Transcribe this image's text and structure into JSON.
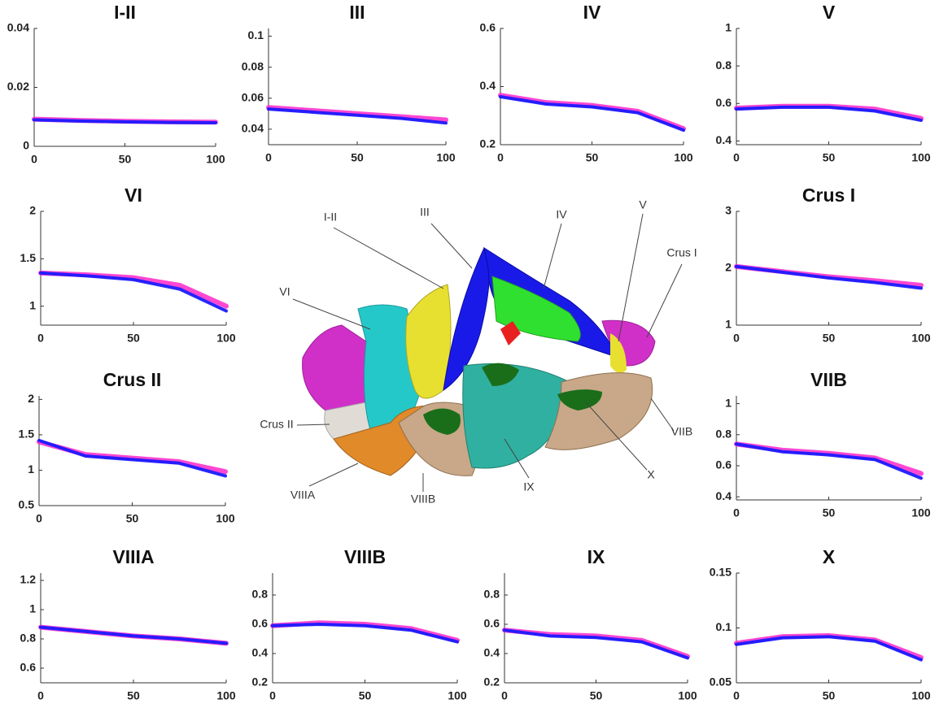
{
  "chart_data": [
    {
      "type": "line",
      "title": "I-II",
      "x": [
        0,
        25,
        50,
        75,
        100
      ],
      "xlim": [
        0,
        100
      ],
      "xticks": [
        0,
        50,
        100
      ],
      "ylim": [
        0,
        0.04
      ],
      "yticks": [
        0,
        0.02,
        0.04
      ],
      "series": [
        {
          "color": "#ff33cc",
          "values": [
            0.0092,
            0.0088,
            0.0085,
            0.0083,
            0.0082
          ]
        },
        {
          "color": "#1a1aff",
          "values": [
            0.009,
            0.0086,
            0.0083,
            0.0081,
            0.008
          ]
        }
      ]
    },
    {
      "type": "line",
      "title": "III",
      "x": [
        0,
        25,
        50,
        75,
        100
      ],
      "xlim": [
        0,
        100
      ],
      "xticks": [
        0,
        50,
        100
      ],
      "ylim": [
        0.03,
        0.105
      ],
      "yticks": [
        0.04,
        0.06,
        0.08,
        0.1
      ],
      "series": [
        {
          "color": "#ff33cc",
          "values": [
            0.054,
            0.052,
            0.05,
            0.048,
            0.046
          ]
        },
        {
          "color": "#1a1aff",
          "values": [
            0.053,
            0.051,
            0.049,
            0.047,
            0.044
          ]
        }
      ]
    },
    {
      "type": "line",
      "title": "IV",
      "x": [
        0,
        25,
        50,
        75,
        100
      ],
      "xlim": [
        0,
        100
      ],
      "xticks": [
        0,
        50,
        100
      ],
      "ylim": [
        0.2,
        0.6
      ],
      "yticks": [
        0.2,
        0.4,
        0.6
      ],
      "series": [
        {
          "color": "#ff33cc",
          "values": [
            0.37,
            0.345,
            0.335,
            0.315,
            0.255
          ]
        },
        {
          "color": "#1a1aff",
          "values": [
            0.365,
            0.34,
            0.33,
            0.31,
            0.25
          ]
        }
      ]
    },
    {
      "type": "line",
      "title": "V",
      "x": [
        0,
        25,
        50,
        75,
        100
      ],
      "xlim": [
        0,
        100
      ],
      "xticks": [
        0,
        50,
        100
      ],
      "ylim": [
        0.38,
        1
      ],
      "yticks": [
        0.4,
        0.6,
        0.8,
        1
      ],
      "series": [
        {
          "color": "#ff33cc",
          "values": [
            0.575,
            0.585,
            0.585,
            0.57,
            0.52
          ]
        },
        {
          "color": "#1a1aff",
          "values": [
            0.57,
            0.58,
            0.58,
            0.56,
            0.51
          ]
        }
      ]
    },
    {
      "type": "line",
      "title": "VI",
      "x": [
        0,
        25,
        50,
        75,
        100
      ],
      "xlim": [
        0,
        100
      ],
      "xticks": [
        0,
        50,
        100
      ],
      "ylim": [
        0.8,
        2
      ],
      "yticks": [
        1,
        1.5,
        2
      ],
      "series": [
        {
          "color": "#ff33cc",
          "values": [
            1.35,
            1.33,
            1.3,
            1.22,
            1.0
          ]
        },
        {
          "color": "#1a1aff",
          "values": [
            1.35,
            1.32,
            1.28,
            1.18,
            0.95
          ]
        }
      ]
    },
    {
      "type": "line",
      "title": "Crus I",
      "x": [
        0,
        25,
        50,
        75,
        100
      ],
      "xlim": [
        0,
        100
      ],
      "xticks": [
        0,
        50,
        100
      ],
      "ylim": [
        1,
        3
      ],
      "yticks": [
        1,
        2,
        3
      ],
      "series": [
        {
          "color": "#ff33cc",
          "values": [
            2.03,
            1.94,
            1.85,
            1.78,
            1.7
          ]
        },
        {
          "color": "#1a1aff",
          "values": [
            2.03,
            1.93,
            1.83,
            1.75,
            1.65
          ]
        }
      ]
    },
    {
      "type": "line",
      "title": "Crus II",
      "x": [
        0,
        25,
        50,
        75,
        100
      ],
      "xlim": [
        0,
        100
      ],
      "xticks": [
        0,
        50,
        100
      ],
      "ylim": [
        0.5,
        2.05
      ],
      "yticks": [
        0.5,
        1,
        1.5,
        2
      ],
      "series": [
        {
          "color": "#ff33cc",
          "values": [
            1.4,
            1.22,
            1.17,
            1.12,
            0.98
          ]
        },
        {
          "color": "#1a1aff",
          "values": [
            1.42,
            1.2,
            1.15,
            1.1,
            0.92
          ]
        }
      ]
    },
    {
      "type": "line",
      "title": "VIIB",
      "x": [
        0,
        25,
        50,
        75,
        100
      ],
      "xlim": [
        0,
        100
      ],
      "xticks": [
        0,
        50,
        100
      ],
      "ylim": [
        0.38,
        1.05
      ],
      "yticks": [
        0.4,
        0.6,
        0.8,
        1
      ],
      "series": [
        {
          "color": "#ff33cc",
          "values": [
            0.74,
            0.7,
            0.68,
            0.65,
            0.55
          ]
        },
        {
          "color": "#1a1aff",
          "values": [
            0.74,
            0.69,
            0.67,
            0.64,
            0.52
          ]
        }
      ]
    },
    {
      "type": "line",
      "title": "VIIIA",
      "x": [
        0,
        25,
        50,
        75,
        100
      ],
      "xlim": [
        0,
        100
      ],
      "xticks": [
        0,
        50,
        100
      ],
      "ylim": [
        0.5,
        1.25
      ],
      "yticks": [
        0.6,
        0.8,
        1,
        1.2
      ],
      "series": [
        {
          "color": "#ff33cc",
          "values": [
            0.88,
            0.85,
            0.82,
            0.8,
            0.77
          ]
        },
        {
          "color": "#1a1aff",
          "values": [
            0.88,
            0.85,
            0.82,
            0.8,
            0.77
          ]
        }
      ]
    },
    {
      "type": "line",
      "title": "VIIIB",
      "x": [
        0,
        25,
        50,
        75,
        100
      ],
      "xlim": [
        0,
        100
      ],
      "xticks": [
        0,
        50,
        100
      ],
      "ylim": [
        0.2,
        0.95
      ],
      "yticks": [
        0.2,
        0.4,
        0.6,
        0.8
      ],
      "series": [
        {
          "color": "#ff33cc",
          "values": [
            0.59,
            0.61,
            0.6,
            0.57,
            0.49
          ]
        },
        {
          "color": "#1a1aff",
          "values": [
            0.59,
            0.6,
            0.59,
            0.56,
            0.48
          ]
        }
      ]
    },
    {
      "type": "line",
      "title": "IX",
      "x": [
        0,
        25,
        50,
        75,
        100
      ],
      "xlim": [
        0,
        100
      ],
      "xticks": [
        0,
        50,
        100
      ],
      "ylim": [
        0.2,
        0.95
      ],
      "yticks": [
        0.2,
        0.4,
        0.6,
        0.8
      ],
      "series": [
        {
          "color": "#ff33cc",
          "values": [
            0.56,
            0.53,
            0.52,
            0.49,
            0.38
          ]
        },
        {
          "color": "#1a1aff",
          "values": [
            0.56,
            0.52,
            0.51,
            0.48,
            0.37
          ]
        }
      ]
    },
    {
      "type": "line",
      "title": "X",
      "x": [
        0,
        25,
        50,
        75,
        100
      ],
      "xlim": [
        0,
        100
      ],
      "xticks": [
        0,
        50,
        100
      ],
      "ylim": [
        0.05,
        0.15
      ],
      "yticks": [
        0.05,
        0.1,
        0.15
      ],
      "series": [
        {
          "color": "#ff33cc",
          "values": [
            0.086,
            0.092,
            0.093,
            0.089,
            0.073
          ]
        },
        {
          "color": "#1a1aff",
          "values": [
            0.085,
            0.091,
            0.092,
            0.088,
            0.071
          ]
        }
      ]
    }
  ],
  "diagram": {
    "labels": [
      "I-II",
      "III",
      "IV",
      "V",
      "Crus I",
      "VI",
      "Crus II",
      "VIIB",
      "VIIIA",
      "VIIIB",
      "IX",
      "X"
    ]
  }
}
